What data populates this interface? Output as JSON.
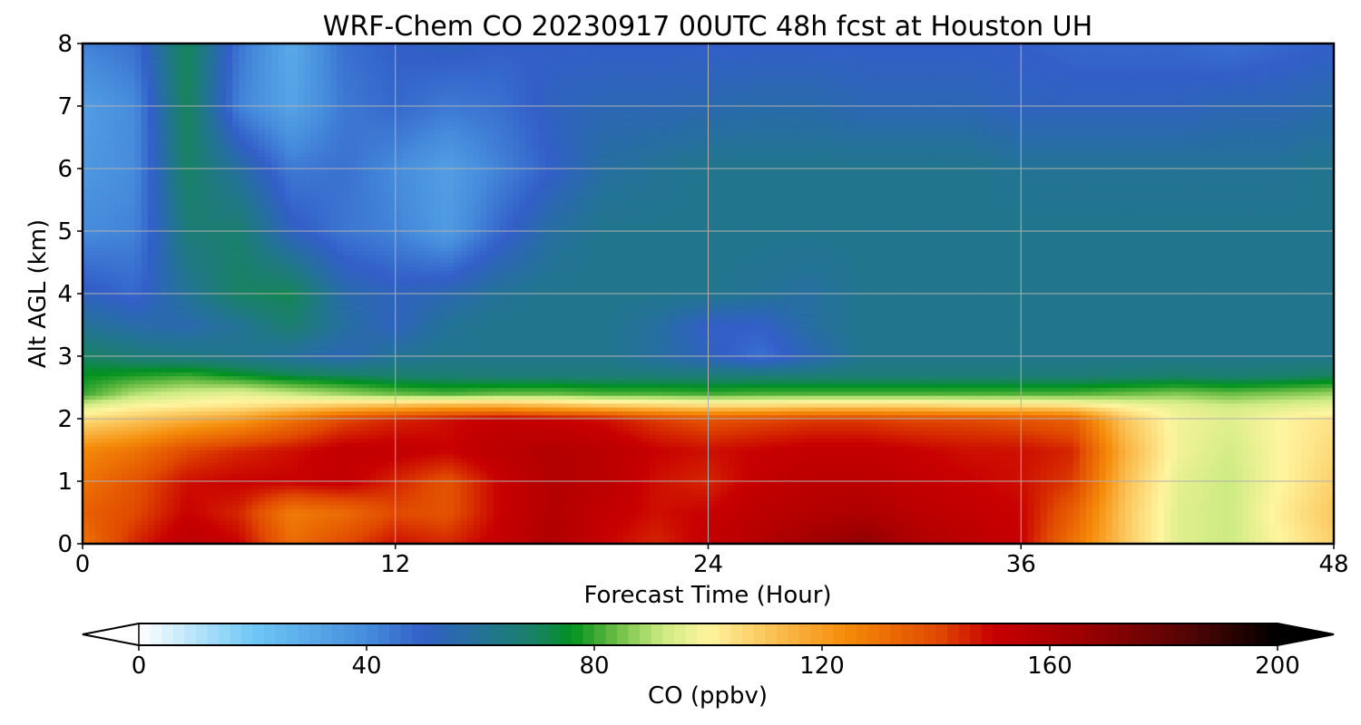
{
  "chart_data": {
    "type": "heatmap",
    "title": "WRF-Chem CO  20230917 00UTC 48h fcst at Houston UH",
    "xlabel": "Forecast Time (Hour)",
    "ylabel": "Alt AGL (km)",
    "xlim": [
      0,
      48
    ],
    "ylim": [
      0,
      8
    ],
    "xticks": [
      0,
      12,
      24,
      36,
      48
    ],
    "yticks": [
      0,
      1,
      2,
      3,
      4,
      5,
      6,
      7,
      8
    ],
    "grid": true,
    "x": [
      0,
      2,
      4,
      6,
      8,
      10,
      12,
      14,
      16,
      18,
      20,
      22,
      24,
      26,
      28,
      30,
      32,
      34,
      36,
      38,
      40,
      42,
      44,
      46,
      48
    ],
    "y": [
      0,
      0.5,
      1,
      1.5,
      2,
      2.2,
      2.4,
      2.7,
      3,
      3.5,
      4,
      5,
      6,
      7,
      8
    ],
    "values": [
      [
        130,
        145,
        155,
        150,
        132,
        140,
        148,
        145,
        152,
        160,
        150,
        145,
        152,
        158,
        165,
        170,
        160,
        155,
        150,
        130,
        110,
        95,
        92,
        100,
        108
      ],
      [
        135,
        140,
        150,
        145,
        128,
        132,
        140,
        138,
        150,
        158,
        152,
        148,
        150,
        155,
        158,
        160,
        155,
        152,
        150,
        135,
        110,
        95,
        92,
        102,
        110
      ],
      [
        130,
        138,
        148,
        150,
        150,
        152,
        145,
        138,
        150,
        158,
        155,
        148,
        145,
        152,
        155,
        155,
        152,
        150,
        148,
        142,
        112,
        96,
        92,
        100,
        108
      ],
      [
        125,
        130,
        140,
        145,
        148,
        152,
        152,
        150,
        155,
        158,
        155,
        150,
        148,
        150,
        152,
        152,
        150,
        148,
        148,
        145,
        115,
        98,
        93,
        100,
        106
      ],
      [
        105,
        110,
        115,
        120,
        130,
        140,
        145,
        148,
        152,
        150,
        148,
        142,
        138,
        140,
        142,
        142,
        140,
        140,
        138,
        135,
        110,
        98,
        95,
        100,
        104
      ],
      [
        95,
        100,
        102,
        104,
        108,
        112,
        115,
        118,
        118,
        115,
        112,
        110,
        108,
        108,
        110,
        110,
        110,
        108,
        108,
        106,
        100,
        96,
        93,
        95,
        97
      ],
      [
        80,
        90,
        94,
        96,
        92,
        88,
        84,
        82,
        84,
        84,
        82,
        82,
        81,
        82,
        82,
        82,
        82,
        82,
        82,
        82,
        84,
        86,
        84,
        86,
        88
      ],
      [
        76,
        78,
        80,
        76,
        72,
        70,
        68,
        67,
        66,
        66,
        66,
        66,
        66,
        66,
        66,
        66,
        66,
        66,
        66,
        66,
        67,
        68,
        67,
        68,
        70
      ],
      [
        70,
        66,
        64,
        62,
        58,
        54,
        60,
        62,
        62,
        62,
        62,
        58,
        52,
        46,
        54,
        62,
        62,
        62,
        62,
        62,
        62,
        62,
        62,
        62,
        62
      ],
      [
        60,
        56,
        55,
        60,
        68,
        58,
        52,
        60,
        62,
        62,
        62,
        58,
        50,
        50,
        58,
        62,
        62,
        62,
        62,
        62,
        62,
        62,
        62,
        62,
        62
      ],
      [
        52,
        48,
        60,
        70,
        72,
        56,
        52,
        55,
        60,
        62,
        62,
        62,
        62,
        60,
        58,
        62,
        62,
        62,
        62,
        62,
        62,
        62,
        62,
        62,
        62
      ],
      [
        40,
        42,
        66,
        68,
        52,
        45,
        42,
        35,
        48,
        58,
        62,
        62,
        62,
        62,
        62,
        62,
        62,
        62,
        62,
        62,
        62,
        62,
        62,
        62,
        62
      ],
      [
        36,
        40,
        70,
        58,
        44,
        46,
        40,
        34,
        42,
        50,
        58,
        60,
        62,
        62,
        62,
        62,
        62,
        62,
        60,
        60,
        60,
        60,
        60,
        60,
        62
      ],
      [
        34,
        40,
        72,
        42,
        32,
        44,
        48,
        44,
        46,
        52,
        54,
        54,
        55,
        56,
        56,
        54,
        54,
        54,
        52,
        52,
        52,
        52,
        54,
        54,
        56
      ],
      [
        42,
        46,
        72,
        45,
        30,
        46,
        50,
        52,
        50,
        50,
        50,
        50,
        50,
        50,
        50,
        50,
        50,
        50,
        50,
        48,
        48,
        48,
        46,
        48,
        50
      ]
    ],
    "colorbar": {
      "label": "CO  (ppbv)",
      "min": 0,
      "max": 200,
      "ticks": [
        0,
        40,
        80,
        120,
        160,
        200
      ],
      "extend": "both"
    }
  }
}
